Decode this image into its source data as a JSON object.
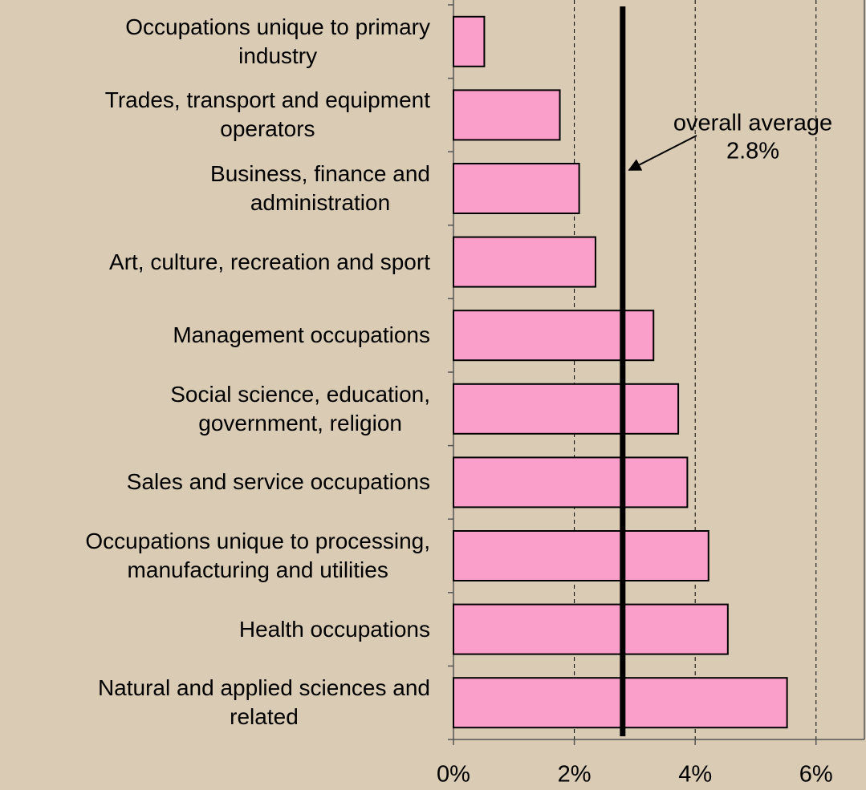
{
  "chart_data": {
    "type": "barh",
    "categories": [
      [
        "Occupations unique to primary",
        "industry"
      ],
      [
        "Trades, transport and equipment",
        "operators"
      ],
      [
        "Business, finance and",
        "administration"
      ],
      [
        "Art, culture, recreation and sport"
      ],
      [
        "Management occupations"
      ],
      [
        "Social science, education,",
        "government, religion"
      ],
      [
        "Sales and service occupations"
      ],
      [
        "Occupations unique to processing,",
        "manufacturing and utilities"
      ],
      [
        "Health occupations"
      ],
      [
        "Natural and applied sciences and",
        "related"
      ]
    ],
    "values": [
      0.51,
      1.76,
      2.08,
      2.35,
      3.31,
      3.72,
      3.87,
      4.22,
      4.54,
      5.52
    ],
    "color": "#fa9fca",
    "xlim": [
      0,
      6.8
    ],
    "xticks": [
      {
        "value": 0,
        "label": "0%"
      },
      {
        "value": 2,
        "label": "2%"
      },
      {
        "value": 4,
        "label": "4%"
      },
      {
        "value": 6,
        "label": "6%"
      }
    ],
    "grid": true,
    "average": 2.8,
    "average_label": [
      "overall average",
      "2.8%"
    ]
  }
}
